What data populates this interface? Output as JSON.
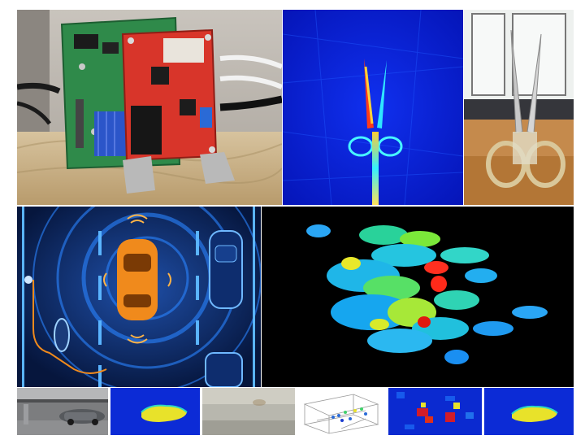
{
  "figure": {
    "background": "#ffffff",
    "panels": [
      {
        "name": "radar-board-photo",
        "kind": "photo"
      },
      {
        "name": "scissors-radar-image",
        "kind": "radar-heatmap"
      },
      {
        "name": "scissors-photo",
        "kind": "photo"
      },
      {
        "name": "automotive-radar-illustration",
        "kind": "illustration"
      },
      {
        "name": "point-cloud-visualization",
        "kind": "3d-point-cloud"
      },
      {
        "name": "parking-garage-car-photo",
        "kind": "photo"
      },
      {
        "name": "car-silhouette-mask-1",
        "kind": "mask"
      },
      {
        "name": "foggy-scene-photo",
        "kind": "photo"
      },
      {
        "name": "3d-scatter-plot",
        "kind": "plot"
      },
      {
        "name": "radar-heatmap-small",
        "kind": "radar-heatmap"
      },
      {
        "name": "car-silhouette-mask-2",
        "kind": "mask"
      }
    ]
  },
  "colors": {
    "radar_blue": "#0a1fd8",
    "board_red": "#d8352a",
    "board_green": "#2f8a4a",
    "car_orange": "#f08a1c",
    "mask_yellow": "#e8e22a",
    "mask_blue": "#0c2bd6",
    "illustration_bg": "#0a1f52"
  }
}
